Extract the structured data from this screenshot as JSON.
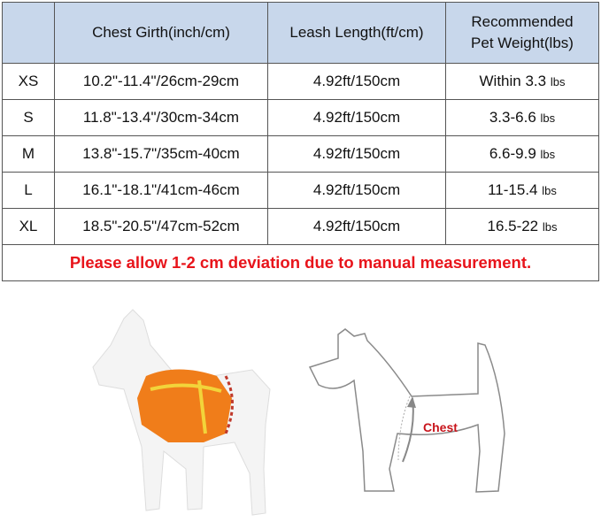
{
  "table": {
    "headers": [
      "",
      "Chest Girth(inch/cm)",
      "Leash Length(ft/cm)",
      "Recommended Pet Weight(lbs)"
    ],
    "header_weight_line1": "Recommended",
    "header_weight_line2": "Pet Weight(lbs)",
    "rows": [
      {
        "size": "XS",
        "chest": "10.2\"-11.4\"/26cm-29cm",
        "leash": "4.92ft/150cm",
        "weight": "Within 3.3",
        "unit": "lbs"
      },
      {
        "size": "S",
        "chest": "11.8\"-13.4\"/30cm-34cm",
        "leash": "4.92ft/150cm",
        "weight": "3.3-6.6",
        "unit": "lbs"
      },
      {
        "size": "M",
        "chest": "13.8\"-15.7\"/35cm-40cm",
        "leash": "4.92ft/150cm",
        "weight": "6.6-9.9",
        "unit": "lbs"
      },
      {
        "size": "L",
        "chest": "16.1\"-18.1\"/41cm-46cm",
        "leash": "4.92ft/150cm",
        "weight": "11-15.4",
        "unit": "lbs"
      },
      {
        "size": "XL",
        "chest": "18.5\"-20.5\"/47cm-52cm",
        "leash": "4.92ft/150cm",
        "weight": "16.5-22",
        "unit": "lbs"
      }
    ],
    "note": "Please allow 1-2 cm deviation due to manual measurement."
  },
  "diagram": {
    "chest_label": "Chest"
  },
  "colors": {
    "header_bg": "#c8d7eb",
    "note": "#e8141b",
    "harness": "#f07d1a"
  }
}
